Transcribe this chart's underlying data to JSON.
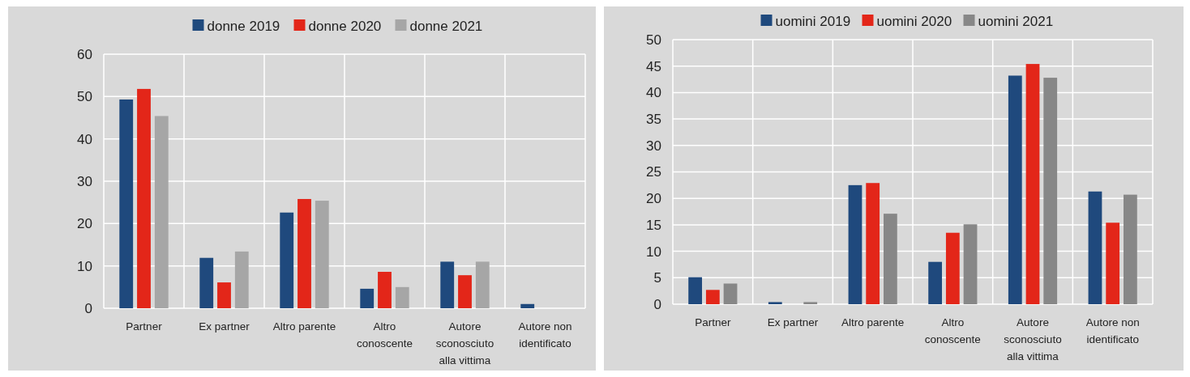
{
  "chart_data": [
    {
      "type": "bar",
      "categories": [
        "Partner",
        "Ex partner",
        "Altro parente",
        "Altro conoscente",
        "Autore sconosciuto alla vittima",
        "Autore non identificato"
      ],
      "series": [
        {
          "name": "donne 2019",
          "color": "#1f497d",
          "values": [
            49.3,
            11.9,
            22.6,
            4.6,
            11.0,
            1.0
          ]
        },
        {
          "name": "donne 2020",
          "color": "#e32619",
          "values": [
            51.8,
            6.1,
            25.8,
            8.6,
            7.8,
            0
          ]
        },
        {
          "name": "donne 2021",
          "color": "#a6a6a6",
          "values": [
            45.4,
            13.4,
            25.4,
            5.0,
            11.0,
            0
          ]
        }
      ],
      "ylim": [
        0,
        60
      ],
      "yticks": [
        0,
        10,
        20,
        30,
        40,
        50,
        60
      ],
      "grid": true,
      "legend": "top"
    },
    {
      "type": "bar",
      "categories": [
        "Partner",
        "Ex partner",
        "Altro parente",
        "Altro conoscente",
        "Autore sconosciuto alla vittima",
        "Autore non identificato"
      ],
      "series": [
        {
          "name": "uomini 2019",
          "color": "#1f497d",
          "values": [
            5.1,
            0.4,
            22.5,
            8.0,
            43.2,
            21.3
          ]
        },
        {
          "name": "uomini 2020",
          "color": "#e32619",
          "values": [
            2.7,
            0,
            22.9,
            13.5,
            45.4,
            15.4
          ]
        },
        {
          "name": "uomini 2021",
          "color": "#878787",
          "values": [
            3.9,
            0.4,
            17.1,
            15.1,
            42.8,
            20.7
          ]
        }
      ],
      "ylim": [
        0,
        50
      ],
      "yticks": [
        0,
        5,
        10,
        15,
        20,
        25,
        30,
        35,
        40,
        45,
        50
      ],
      "grid": true,
      "legend": "top"
    }
  ]
}
